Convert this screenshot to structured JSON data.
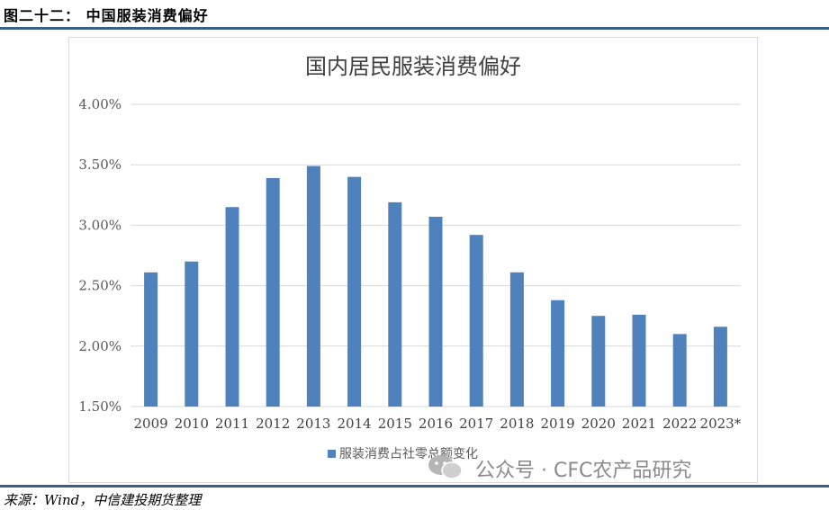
{
  "figure_title": "图二十二：  中国服装消费偏好",
  "source_note": "来源：Wind，中信建投期货整理",
  "watermark": "公众号 · CFC农产品研究",
  "colors": {
    "bar": "#4f81bd",
    "grid": "#d9d9d9",
    "rule": "#3a5f8a"
  },
  "chart_data": {
    "type": "bar",
    "title": "国内居民服装消费偏好",
    "categories": [
      "2009",
      "2010",
      "2011",
      "2012",
      "2013",
      "2014",
      "2015",
      "2016",
      "2017",
      "2018",
      "2019",
      "2020",
      "2021",
      "2022",
      "2023*"
    ],
    "series": [
      {
        "name": "服装消费占社零总额变化",
        "values": [
          2.61,
          2.7,
          3.15,
          3.39,
          3.49,
          3.4,
          3.19,
          3.07,
          2.92,
          2.61,
          2.38,
          2.25,
          2.26,
          2.1,
          2.16
        ]
      }
    ],
    "ylim": [
      1.5,
      4.0
    ],
    "yticks": [
      "1.50%",
      "2.00%",
      "2.50%",
      "3.00%",
      "3.50%",
      "4.00%"
    ],
    "grid": true,
    "legend_position": "bottom"
  }
}
